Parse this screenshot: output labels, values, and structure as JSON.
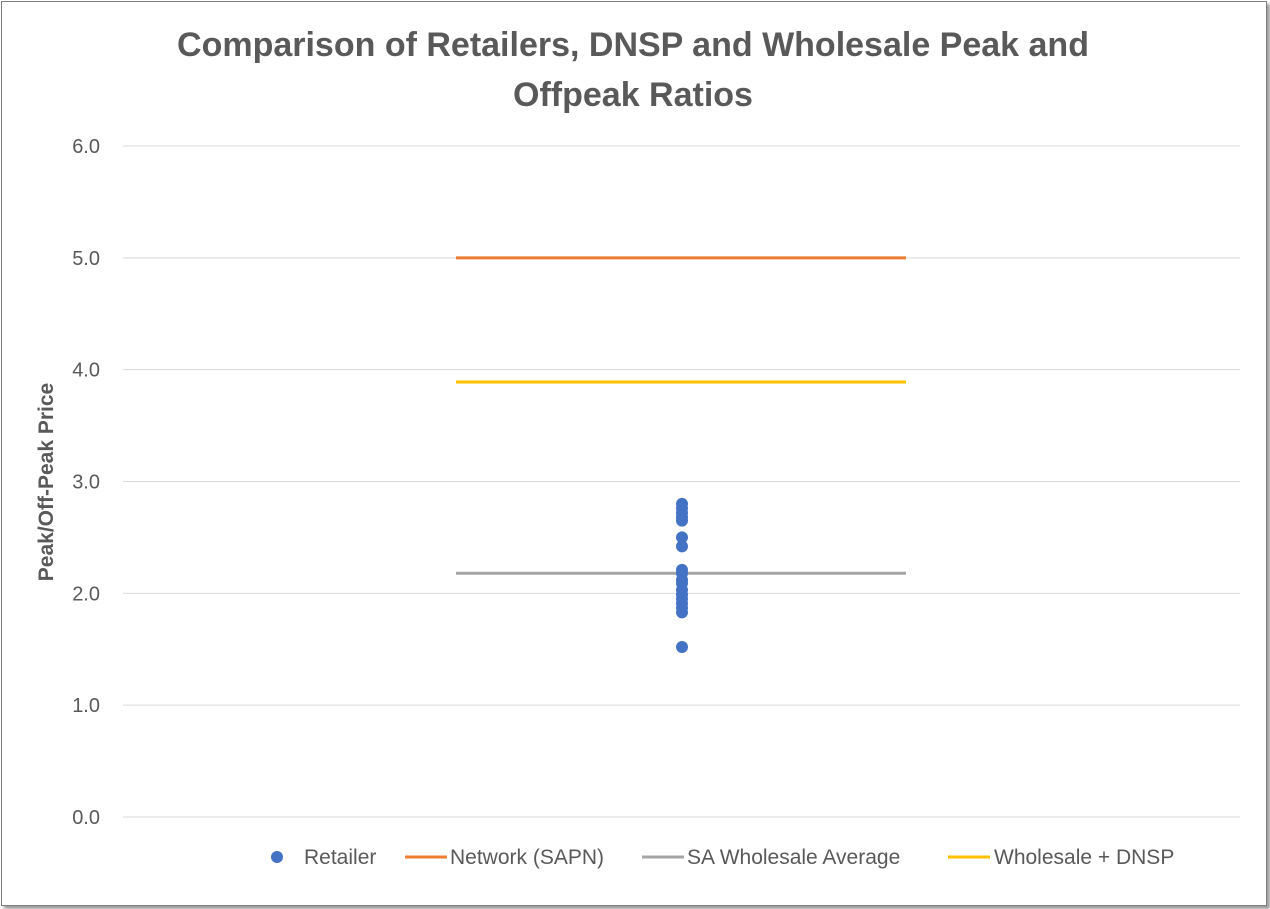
{
  "chart_data": {
    "type": "scatter",
    "title_lines": [
      "Comparison of Retailers, DNSP and Wholesale Peak and",
      "Offpeak Ratios"
    ],
    "ylabel": "Peak/Off-Peak Price",
    "xlabel": "",
    "ylim": [
      0,
      6
    ],
    "y_ticks": [
      "0.0",
      "1.0",
      "2.0",
      "3.0",
      "4.0",
      "5.0",
      "6.0"
    ],
    "grid": true,
    "legend_position": "bottom",
    "series": [
      {
        "name": "Retailer",
        "kind": "scatter",
        "color": "#4472c4",
        "values": [
          2.8,
          2.76,
          2.72,
          2.68,
          2.65,
          2.5,
          2.42,
          2.21,
          2.18,
          2.12,
          2.09,
          2.03,
          1.99,
          1.95,
          1.91,
          1.87,
          1.83,
          1.52
        ]
      },
      {
        "name": "Network (SAPN)",
        "kind": "line",
        "color": "#ed7d31",
        "value": 5.0
      },
      {
        "name": "SA Wholesale Average",
        "kind": "line",
        "color": "#a5a5a5",
        "value": 2.18
      },
      {
        "name": "Wholesale + DNSP",
        "kind": "line",
        "color": "#ffc000",
        "value": 3.89
      }
    ]
  }
}
